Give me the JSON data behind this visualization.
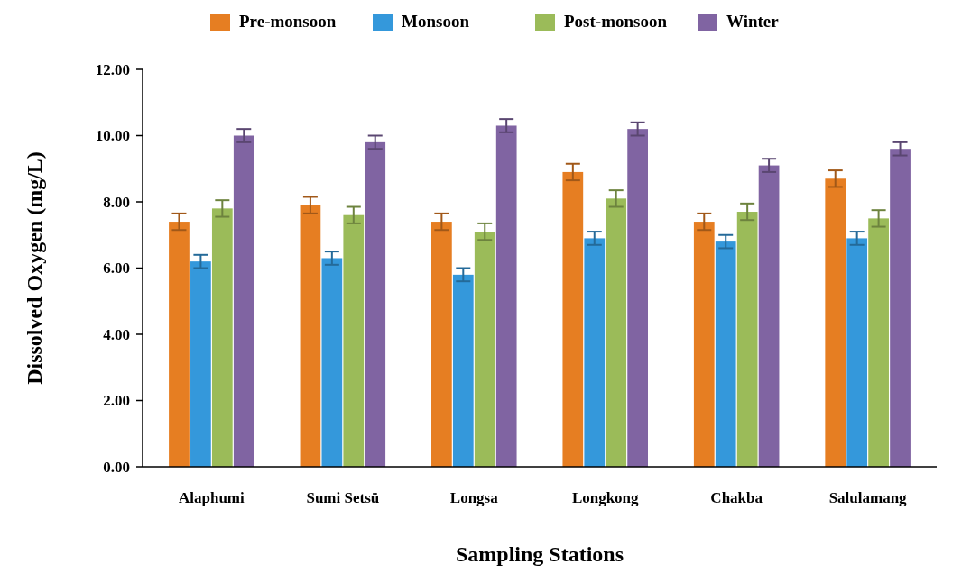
{
  "chart_data": {
    "type": "bar",
    "xlabel": "Sampling Stations",
    "ylabel": "Dissolved Oxygen (mg/L)",
    "categories": [
      "Alaphumi",
      "Sumi Setsü",
      "Longsa",
      "Longkong",
      "Chakba",
      "Salulamang"
    ],
    "series": [
      {
        "name": "Pre-monsoon",
        "color": "#e67e22",
        "values": [
          7.4,
          7.9,
          7.4,
          8.9,
          7.4,
          8.7
        ],
        "errors": [
          0.25,
          0.25,
          0.25,
          0.25,
          0.25,
          0.25
        ]
      },
      {
        "name": "Monsoon",
        "color": "#3498db",
        "values": [
          6.2,
          6.3,
          5.8,
          6.9,
          6.8,
          6.9
        ],
        "errors": [
          0.2,
          0.2,
          0.2,
          0.2,
          0.2,
          0.2
        ]
      },
      {
        "name": "Post-monsoon",
        "color": "#9bbb59",
        "values": [
          7.8,
          7.6,
          7.1,
          8.1,
          7.7,
          7.5
        ],
        "errors": [
          0.25,
          0.25,
          0.25,
          0.25,
          0.25,
          0.25
        ]
      },
      {
        "name": "Winter",
        "color": "#8064a2",
        "values": [
          10.0,
          9.8,
          10.3,
          10.2,
          9.1,
          9.6
        ],
        "errors": [
          0.2,
          0.2,
          0.2,
          0.2,
          0.2,
          0.2
        ]
      }
    ],
    "ylim": [
      0,
      12
    ],
    "yticks": [
      {
        "value": 0,
        "label": "0.00"
      },
      {
        "value": 2,
        "label": "2.00"
      },
      {
        "value": 4,
        "label": "4.00"
      },
      {
        "value": 6,
        "label": "6.00"
      },
      {
        "value": 8,
        "label": "8.00"
      },
      {
        "value": 10,
        "label": "10.00"
      },
      {
        "value": 12,
        "label": "12.00"
      }
    ],
    "legend": "top",
    "grid": false
  }
}
